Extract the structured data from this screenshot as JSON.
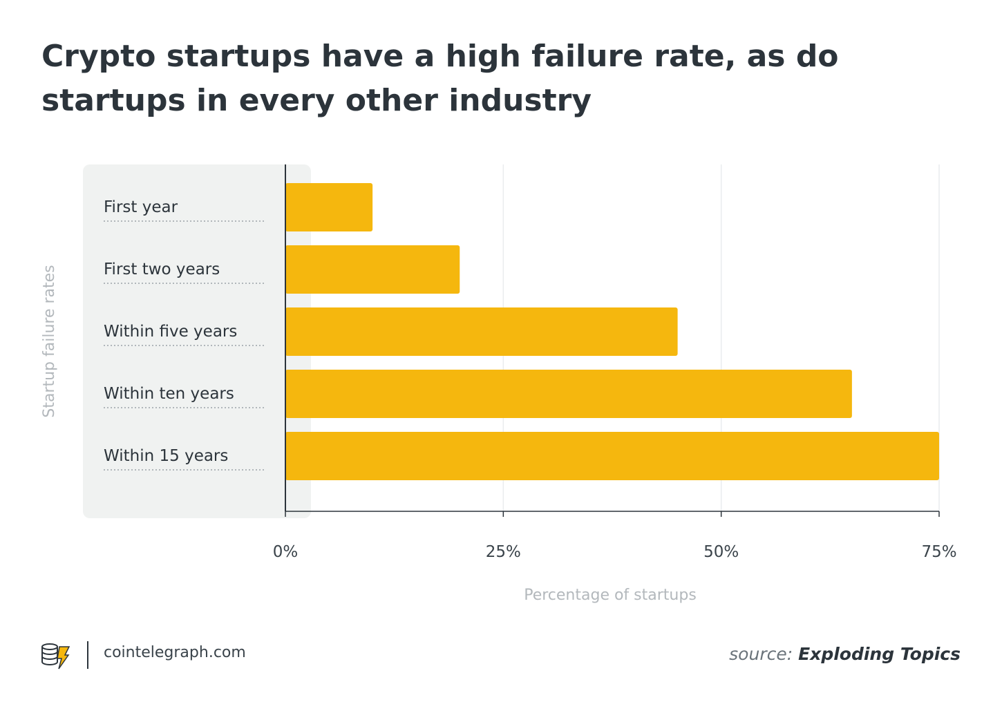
{
  "title": "Crypto startups have a high failure rate, as do startups in every other industry",
  "footer": {
    "site": "cointelegraph.com",
    "source_prefix": "source:",
    "source_name": "Exploding Topics"
  },
  "colors": {
    "bar": "#F5B70E",
    "panel": "#F0F2F1",
    "text": "#2C343B",
    "muted": "#B3B8BC",
    "grid": "#E9ECEE"
  },
  "chart_data": {
    "type": "bar",
    "orientation": "horizontal",
    "title": "Crypto startups have a high failure rate, as do startups in every other industry",
    "categories": [
      "First year",
      "First two years",
      "Within five years",
      "Within ten years",
      "Within 15 years"
    ],
    "values": [
      10,
      20,
      45,
      65,
      75
    ],
    "xlabel": "Percentage of startups",
    "ylabel": "Startup failure rates",
    "xlim": [
      0,
      75
    ],
    "xticks": [
      0,
      25,
      50,
      75
    ],
    "xtick_labels": [
      "0%",
      "25%",
      "50%",
      "75%"
    ],
    "grid": true,
    "legend": "none"
  }
}
